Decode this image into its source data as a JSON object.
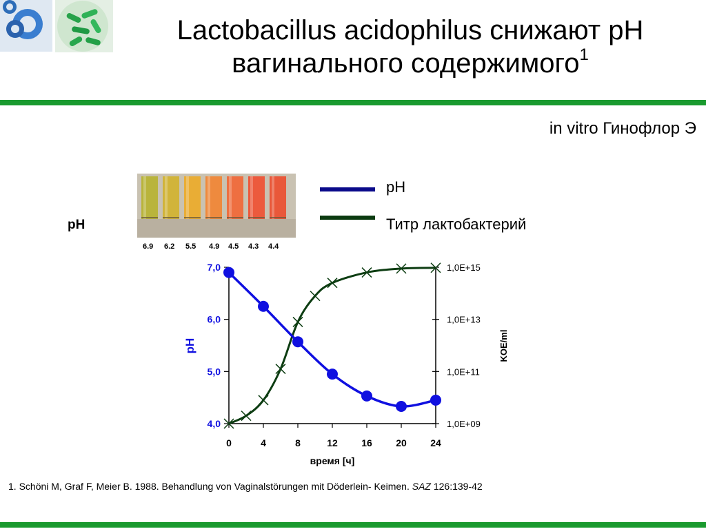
{
  "slide": {
    "title_main": "Lactobacillus acidophilus снижают pH вагинального содержимого",
    "title_sup": "1",
    "subtitle": "in vitro Гинофлор Э",
    "tubes_label": "pH",
    "tube_ph_values": [
      "6.9",
      "6.2",
      "5.5",
      "4.9",
      "4.5",
      "4.3",
      "4.4"
    ],
    "tube_colors": [
      "#b9b43c",
      "#d1b43a",
      "#e9ad35",
      "#ee8a3e",
      "#ee6f41",
      "#ec5a3d",
      "#e9583a"
    ],
    "legend": {
      "ph_label": "pH",
      "titer_label": "Титр лактобактерий"
    },
    "footnote": {
      "text": "1. Schöni M, Graf F, Meier B. 1988. Behandlung von Vaginalstörungen mit Döderlein- Keimen.",
      "journal": "SAZ",
      "ref": "126:139-42"
    },
    "colors": {
      "green_bar": "#1a9a2f",
      "ph_series": "#1010e0",
      "titer_series": "#0d3d12",
      "legend_ph": "#0a0a8a",
      "legend_titer": "#0b3b10"
    }
  },
  "chart_data": {
    "type": "line",
    "x": [
      0,
      4,
      8,
      12,
      16,
      20,
      24
    ],
    "xticks": [
      "0",
      "4",
      "8",
      "12",
      "16",
      "20",
      "24"
    ],
    "xlabel": "время [ч]",
    "ylabel_left": "pH",
    "ylabel_right": "KOE/ml",
    "ylim_left": [
      4.0,
      7.0
    ],
    "yticks_left": [
      "4,0",
      "5,0",
      "6,0",
      "7,0"
    ],
    "ylim_right_log10": [
      9,
      15
    ],
    "yticks_right": [
      "1,0E+09",
      "1,0E+11",
      "1,0E+13",
      "1,0E+15"
    ],
    "series": [
      {
        "name": "pH",
        "axis": "left",
        "x": [
          0,
          4,
          8,
          12,
          16,
          20,
          24
        ],
        "values": [
          6.9,
          6.25,
          5.57,
          4.95,
          4.53,
          4.33,
          4.45
        ]
      },
      {
        "name": "Титр лактобактерий",
        "axis": "right",
        "x": [
          0,
          2,
          4,
          6,
          8,
          10,
          12,
          16,
          20,
          24
        ],
        "values_log10": [
          9.0,
          9.3,
          9.9,
          11.1,
          12.9,
          13.9,
          14.4,
          14.8,
          14.95,
          14.98
        ]
      }
    ]
  }
}
